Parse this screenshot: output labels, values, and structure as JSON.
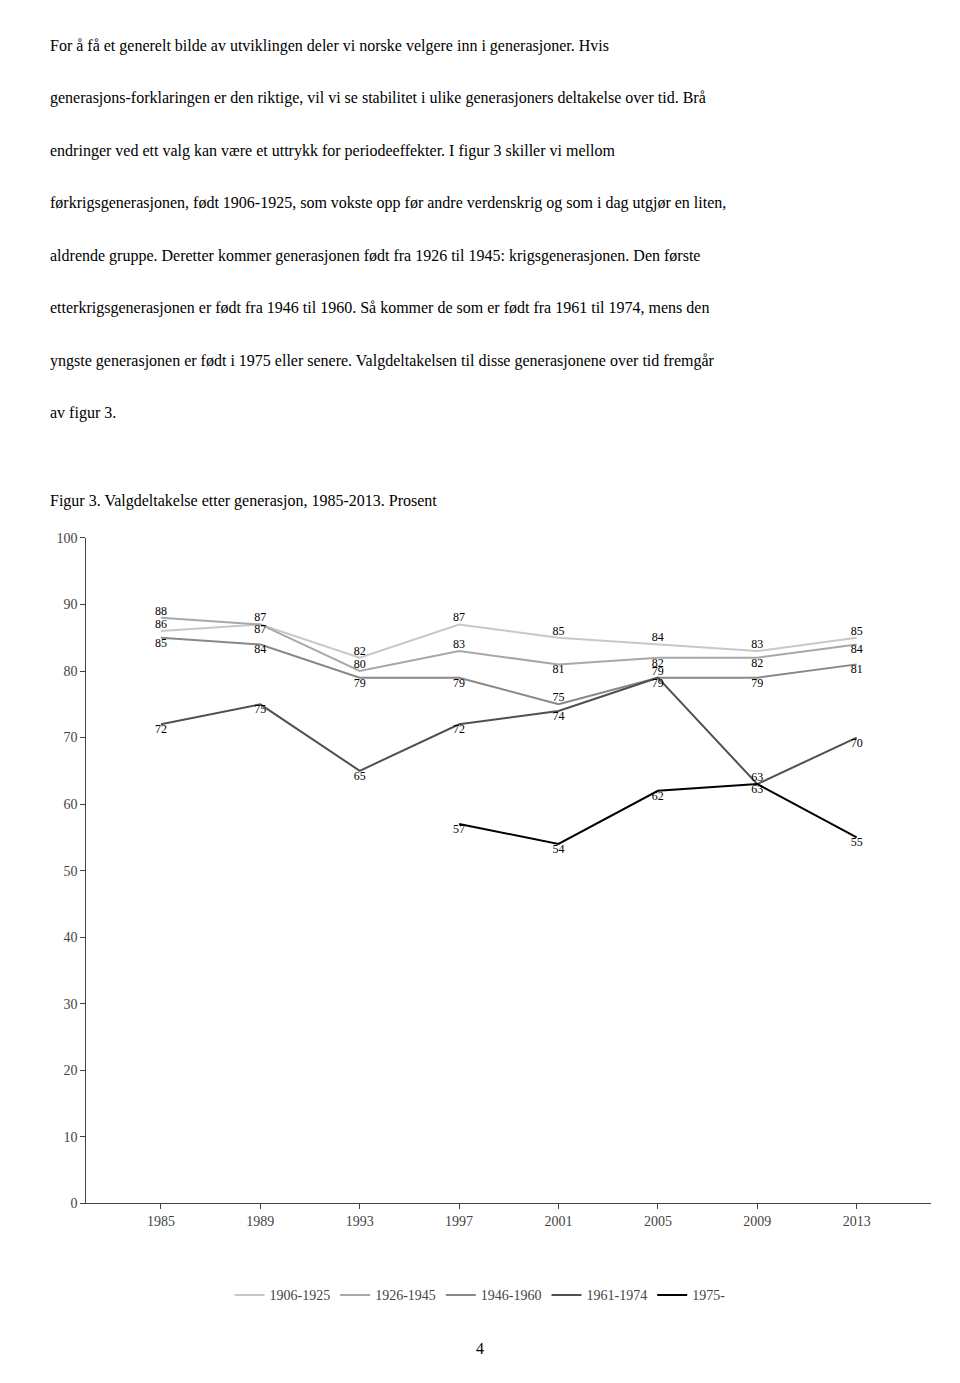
{
  "chart_data": {
    "type": "line",
    "title": "Figur 3. Valgdeltakelse etter generasjon, 1985-2013. Prosent",
    "annotations": [
      "For å få et generelt bilde av utviklingen deler vi norske velgere inn i generasjoner. Hvis",
      "generasjons-forklaringen er den riktige, vil vi se stabilitet i ulike generasjoners deltakelse over tid. Brå",
      "endringer ved ett valg kan være et uttrykk for periodeeffekter. I figur 3 skiller vi mellom",
      "førkrigsgenerasjonen, født 1906-1925, som vokste opp før andre verdenskrig og som i dag utgjør en liten,",
      "aldrende gruppe. Deretter kommer generasjonen født fra 1926 til 1945: krigsgenerasjonen. Den første",
      "etterkrigsgenerasjonen er født fra 1946 til 1960. Så kommer de som er født fra 1961 til 1974, mens den",
      "yngste generasjonen er født i 1975 eller senere. Valgdeltakelsen til disse generasjonene over tid fremgår",
      "av figur 3.",
      "4"
    ],
    "x": [
      1985,
      1989,
      1993,
      1997,
      2001,
      2005,
      2009,
      2013
    ],
    "series": [
      {
        "name": "1906-1925",
        "color": "#c8c8c8",
        "values": [
          86,
          87,
          82,
          87,
          85,
          84,
          83,
          85
        ]
      },
      {
        "name": "1926-1945",
        "color": "#a8a8a8",
        "values": [
          88,
          87,
          80,
          83,
          81,
          82,
          82,
          84
        ]
      },
      {
        "name": "1946-1960",
        "color": "#888888",
        "values": [
          85,
          84,
          79,
          79,
          75,
          79,
          79,
          81
        ]
      },
      {
        "name": "1961-1974",
        "color": "#505050",
        "values": [
          72,
          75,
          65,
          72,
          74,
          79,
          63,
          70
        ]
      },
      {
        "name": "1975-",
        "color": "#000000",
        "values": [
          null,
          null,
          null,
          57,
          54,
          62,
          63,
          55
        ]
      }
    ],
    "xlim": [
      1982,
      2016
    ],
    "xticks": [
      1985,
      1989,
      1993,
      1997,
      2001,
      2005,
      2009,
      2013
    ],
    "ylim": [
      0,
      100
    ],
    "yticks": [
      0,
      10,
      20,
      30,
      40,
      50,
      60,
      70,
      80,
      90,
      100
    ],
    "grid": false,
    "data_labels": true,
    "legend": "bottom"
  }
}
